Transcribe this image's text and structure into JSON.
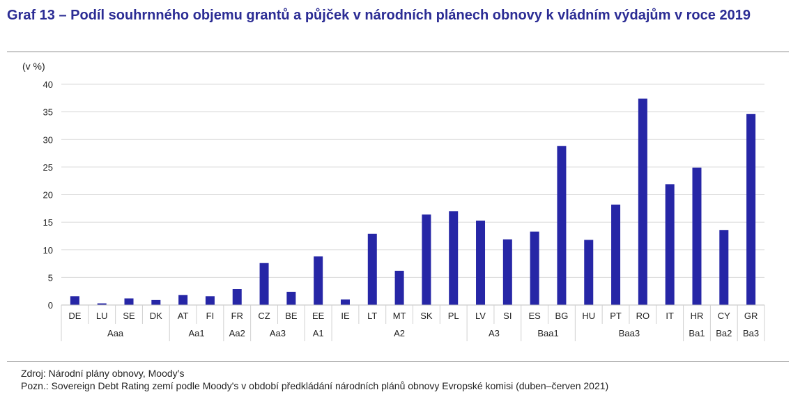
{
  "title": "Graf 13 – Podíl souhrnného objemu grantů a půjček v národních plánech obnovy k vládním výdajům v roce 2019",
  "chart_data": {
    "type": "bar",
    "ylabel": "(v %)",
    "ylim": [
      0,
      40
    ],
    "yticks": [
      0,
      5,
      10,
      15,
      20,
      25,
      30,
      35,
      40
    ],
    "grid": true,
    "bar_color": "#2626a6",
    "categories": [
      "DE",
      "LU",
      "SE",
      "DK",
      "AT",
      "FI",
      "FR",
      "CZ",
      "BE",
      "EE",
      "IE",
      "LT",
      "MT",
      "SK",
      "PL",
      "LV",
      "SI",
      "ES",
      "BG",
      "HU",
      "PT",
      "RO",
      "IT",
      "HR",
      "CY",
      "GR"
    ],
    "values": [
      1.6,
      0.3,
      1.2,
      0.9,
      1.8,
      1.6,
      2.9,
      7.6,
      2.4,
      8.8,
      1.0,
      12.9,
      6.2,
      16.4,
      17.0,
      15.3,
      11.9,
      13.3,
      28.8,
      11.8,
      18.2,
      37.4,
      21.9,
      24.9,
      13.6,
      34.6
    ],
    "groups": [
      {
        "label": "Aaa",
        "count": 4
      },
      {
        "label": "Aa1",
        "count": 2
      },
      {
        "label": "Aa2",
        "count": 1
      },
      {
        "label": "Aa3",
        "count": 2
      },
      {
        "label": "A1",
        "count": 1
      },
      {
        "label": "A2",
        "count": 5
      },
      {
        "label": "A3",
        "count": 2
      },
      {
        "label": "Baa1",
        "count": 2
      },
      {
        "label": "Baa3",
        "count": 4
      },
      {
        "label": "Ba1",
        "count": 1
      },
      {
        "label": "Ba2",
        "count": 1
      },
      {
        "label": "Ba3",
        "count": 1
      }
    ]
  },
  "footer": {
    "source": "Zdroj: Národní plány obnovy, Moody’s",
    "note": "Pozn.: Sovereign Debt Rating zemí podle Moody's v období předkládání národních plánů obnovy Evropské komisi (duben–červen 2021)"
  }
}
